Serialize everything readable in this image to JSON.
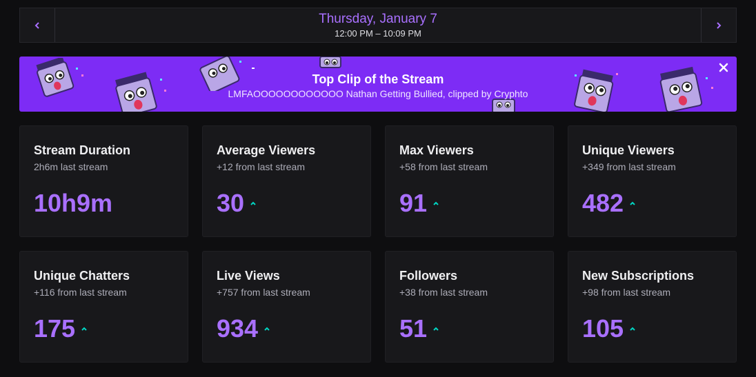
{
  "date_nav": {
    "prev_icon": "chevron-left-icon",
    "next_icon": "chevron-right-icon",
    "date": "Thursday, January 7",
    "time_range": "12:00 PM – 10:09 PM"
  },
  "banner": {
    "title": "Top Clip of the Stream",
    "subtitle": "LMFAOOOOOOOOOOOO Nathan Getting Bullied, clipped by Cryphto",
    "close_icon": "close-icon",
    "background_color": "#7d2cf5"
  },
  "stats": [
    {
      "title": "Stream Duration",
      "subtitle": "2h6m last stream",
      "value": "10h9m",
      "trend": "none"
    },
    {
      "title": "Average Viewers",
      "subtitle": "+12 from last stream",
      "value": "30",
      "trend": "up"
    },
    {
      "title": "Max Viewers",
      "subtitle": "+58 from last stream",
      "value": "91",
      "trend": "up"
    },
    {
      "title": "Unique Viewers",
      "subtitle": "+349 from last stream",
      "value": "482",
      "trend": "up"
    },
    {
      "title": "Unique Chatters",
      "subtitle": "+116 from last stream",
      "value": "175",
      "trend": "up"
    },
    {
      "title": "Live Views",
      "subtitle": "+757 from last stream",
      "value": "934",
      "trend": "up"
    },
    {
      "title": "Followers",
      "subtitle": "+38 from last stream",
      "value": "51",
      "trend": "up"
    },
    {
      "title": "New Subscriptions",
      "subtitle": "+98 from last stream",
      "value": "105",
      "trend": "up"
    }
  ],
  "colors": {
    "accent": "#a970ff",
    "trend_up": "#00d6c3",
    "card_bg": "#18181b",
    "page_bg": "#0e0e10"
  }
}
